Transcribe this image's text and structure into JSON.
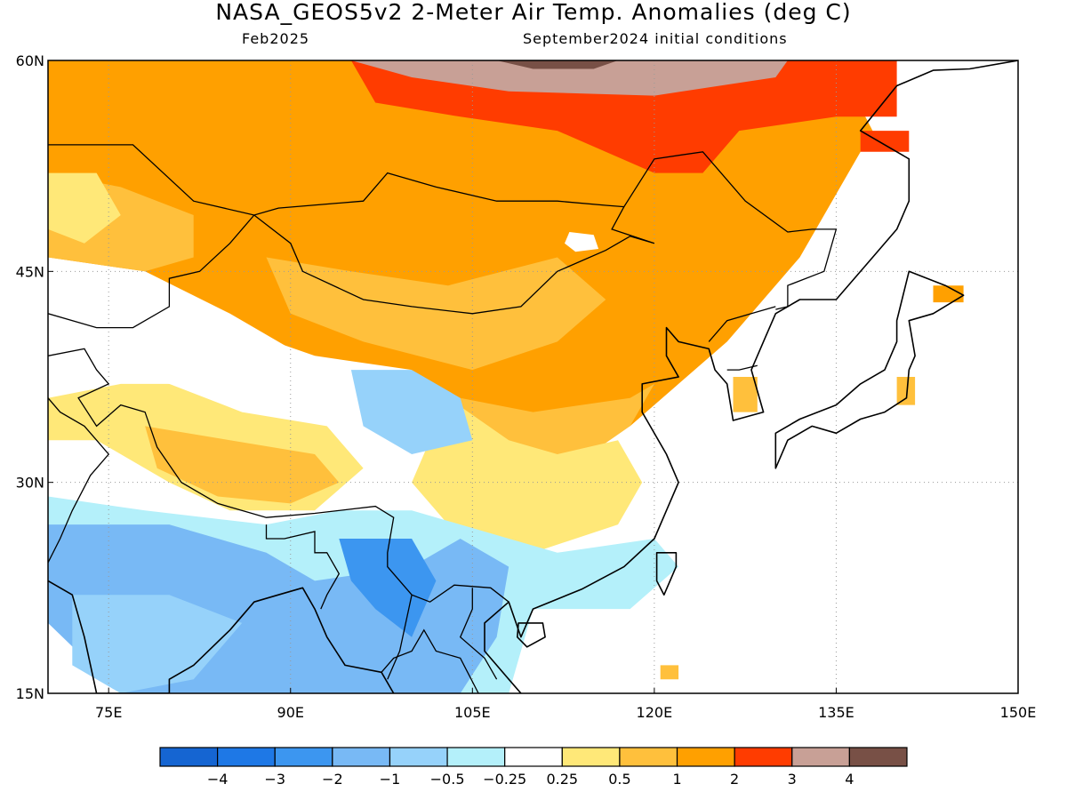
{
  "title": "NASA_GEOS5v2 2-Meter Air Temp. Anomalies (deg C)",
  "subtitle_left": "Feb2025",
  "subtitle_right": "September2024 initial conditions",
  "map_extent": {
    "lon": [
      70,
      150
    ],
    "lat": [
      15,
      60
    ]
  },
  "lon_ticks": [
    {
      "lon": 75,
      "label": "75E"
    },
    {
      "lon": 90,
      "label": "90E"
    },
    {
      "lon": 105,
      "label": "105E"
    },
    {
      "lon": 120,
      "label": "120E"
    },
    {
      "lon": 135,
      "label": "135E"
    },
    {
      "lon": 150,
      "label": "150E"
    }
  ],
  "lat_ticks": [
    {
      "lat": 15,
      "label": "15N"
    },
    {
      "lat": 30,
      "label": "30N"
    },
    {
      "lat": 45,
      "label": "45N"
    },
    {
      "lat": 60,
      "label": "60N"
    }
  ],
  "colorbar": {
    "colors": [
      "#1565d2",
      "#1e78e6",
      "#3c96f0",
      "#78b9f5",
      "#96d2fa",
      "#b4f0fa",
      "#ffffff",
      "#ffe878",
      "#ffc03c",
      "#ffa000",
      "#ff3c00",
      "#c8a096",
      "#785046"
    ],
    "labels": [
      "−4",
      "−3",
      "−2",
      "−1",
      "−0.5",
      "−0.25",
      "0.25",
      "0.5",
      "1",
      "2",
      "3",
      "4"
    ]
  },
  "anomaly_regions": [
    {
      "name": "northeast-warm",
      "level": 2,
      "color": "#ffa000",
      "lonlat": [
        [
          70,
          60
        ],
        [
          135,
          60
        ],
        [
          138,
          55
        ],
        [
          132,
          46
        ],
        [
          126,
          40
        ],
        [
          122,
          37
        ],
        [
          118,
          34
        ],
        [
          112,
          32
        ],
        [
          107,
          33
        ],
        [
          100,
          36
        ],
        [
          93,
          38
        ],
        [
          85,
          42
        ],
        [
          78,
          45
        ],
        [
          70,
          46
        ]
      ]
    },
    {
      "name": "west-siberia-mild",
      "level": 1,
      "color": "#ffc03c",
      "lonlat": [
        [
          70,
          52
        ],
        [
          76,
          51
        ],
        [
          82,
          49
        ],
        [
          82,
          46
        ],
        [
          78,
          45
        ],
        [
          70,
          46
        ]
      ]
    },
    {
      "name": "west-warm-edge",
      "level": 0.5,
      "color": "#ffe878",
      "lonlat": [
        [
          70,
          52
        ],
        [
          74,
          52
        ],
        [
          76,
          49
        ],
        [
          73,
          47
        ],
        [
          70,
          48
        ]
      ]
    },
    {
      "name": "mongolia-mild",
      "level": 1,
      "color": "#ffc03c",
      "lonlat": [
        [
          88,
          46
        ],
        [
          95,
          45
        ],
        [
          103,
          44
        ],
        [
          112,
          46
        ],
        [
          116,
          43
        ],
        [
          112,
          40
        ],
        [
          105,
          38
        ],
        [
          96,
          40
        ],
        [
          90,
          42
        ]
      ]
    },
    {
      "name": "mongolia-white",
      "level": 0.25,
      "color": "#ffffff",
      "lonlat": [
        [
          113,
          47.8
        ],
        [
          115,
          47.6
        ],
        [
          115.4,
          46.6
        ],
        [
          113.5,
          46.4
        ],
        [
          112.6,
          47
        ]
      ]
    },
    {
      "name": "central-china-warm",
      "level": 1,
      "color": "#ffc03c",
      "lonlat": [
        [
          104,
          36
        ],
        [
          110,
          35
        ],
        [
          118,
          36
        ],
        [
          124,
          39
        ],
        [
          120,
          37
        ],
        [
          118,
          34
        ],
        [
          113,
          31
        ],
        [
          112,
          28
        ],
        [
          108,
          28
        ],
        [
          104,
          32
        ]
      ]
    },
    {
      "name": "siberia-hot",
      "level": 3,
      "color": "#ff3c00",
      "lonlat": [
        [
          95,
          60
        ],
        [
          140,
          60
        ],
        [
          140,
          56
        ],
        [
          135,
          56
        ],
        [
          127,
          55
        ],
        [
          124,
          52
        ],
        [
          120,
          52
        ],
        [
          112,
          55
        ],
        [
          104,
          56
        ],
        [
          97,
          57
        ]
      ]
    },
    {
      "name": "siberia-very-hot",
      "level": 4,
      "color": "#c8a096",
      "lonlat": [
        [
          95,
          60
        ],
        [
          131,
          60
        ],
        [
          130,
          58.8
        ],
        [
          120,
          57.5
        ],
        [
          108,
          57.8
        ],
        [
          100,
          58.8
        ]
      ]
    },
    {
      "name": "siberia-extreme",
      "level": 5,
      "color": "#785046",
      "lonlat": [
        [
          107,
          60
        ],
        [
          117,
          60
        ],
        [
          115,
          59.4
        ],
        [
          110,
          59.4
        ]
      ]
    },
    {
      "name": "east-china-mild",
      "level": 0.5,
      "color": "#ffe878",
      "lonlat": [
        [
          103,
          36
        ],
        [
          108,
          33
        ],
        [
          112,
          32
        ],
        [
          117,
          33
        ],
        [
          119,
          30
        ],
        [
          117,
          27
        ],
        [
          110,
          25
        ],
        [
          104,
          26
        ],
        [
          100,
          30
        ]
      ]
    },
    {
      "name": "tibet-mild",
      "level": 0.5,
      "color": "#ffe878",
      "lonlat": [
        [
          70,
          36
        ],
        [
          76,
          37
        ],
        [
          80,
          37
        ],
        [
          86,
          35
        ],
        [
          93,
          34
        ],
        [
          96,
          31
        ],
        [
          92,
          28
        ],
        [
          85,
          28
        ],
        [
          80,
          30
        ],
        [
          74,
          33
        ],
        [
          70,
          33
        ]
      ]
    },
    {
      "name": "tibet-warm",
      "level": 1,
      "color": "#ffc03c",
      "lonlat": [
        [
          78,
          34
        ],
        [
          85,
          33
        ],
        [
          92,
          32
        ],
        [
          94,
          30
        ],
        [
          90,
          28.5
        ],
        [
          84,
          29
        ],
        [
          79,
          31
        ]
      ]
    },
    {
      "name": "tibet-north-neutral",
      "level": 0.25,
      "color": "#ffffff",
      "lonlat": [
        [
          74,
          42
        ],
        [
          82,
          42
        ],
        [
          92,
          39
        ],
        [
          100,
          38
        ],
        [
          96,
          35
        ],
        [
          88,
          36
        ],
        [
          80,
          37
        ],
        [
          74,
          38
        ]
      ]
    },
    {
      "name": "south-cool",
      "level": -0.25,
      "color": "#b4f0fa",
      "lonlat": [
        [
          70,
          29
        ],
        [
          78,
          28
        ],
        [
          88,
          27
        ],
        [
          94,
          28
        ],
        [
          100,
          28
        ],
        [
          104,
          27
        ],
        [
          112,
          25
        ],
        [
          120,
          26
        ],
        [
          122,
          24
        ],
        [
          118,
          21
        ],
        [
          110,
          21
        ],
        [
          108,
          15
        ],
        [
          80,
          15
        ],
        [
          70,
          20
        ]
      ]
    },
    {
      "name": "south-asia-cold",
      "level": -1,
      "color": "#78b9f5",
      "lonlat": [
        [
          70,
          27
        ],
        [
          80,
          27
        ],
        [
          88,
          25
        ],
        [
          92,
          23
        ],
        [
          100,
          24
        ],
        [
          104,
          26
        ],
        [
          108,
          24
        ],
        [
          107,
          19
        ],
        [
          104,
          15
        ],
        [
          85,
          15
        ],
        [
          76,
          15
        ],
        [
          70,
          20
        ]
      ]
    },
    {
      "name": "india-blue",
      "level": -1,
      "color": "#96d2fa",
      "lonlat": [
        [
          72,
          22
        ],
        [
          80,
          22
        ],
        [
          86,
          20
        ],
        [
          82,
          16
        ],
        [
          76,
          15
        ],
        [
          72,
          17
        ]
      ]
    },
    {
      "name": "indochina-cold",
      "level": -2,
      "color": "#3c96f0",
      "lonlat": [
        [
          94,
          26
        ],
        [
          100,
          26
        ],
        [
          102,
          23
        ],
        [
          100,
          19
        ],
        [
          97,
          21
        ],
        [
          95,
          23
        ]
      ]
    },
    {
      "name": "sichuan-cool",
      "level": -0.5,
      "color": "#96d2fa",
      "lonlat": [
        [
          95,
          38
        ],
        [
          100,
          38
        ],
        [
          104,
          36
        ],
        [
          105,
          33
        ],
        [
          100,
          32
        ],
        [
          96,
          34
        ]
      ]
    },
    {
      "name": "taiwan-warm",
      "level": 1,
      "color": "#ffc03c",
      "lonlat": [
        [
          120.5,
          17
        ],
        [
          122,
          17
        ],
        [
          122,
          16
        ],
        [
          120.5,
          16
        ]
      ]
    },
    {
      "name": "korea-warm",
      "level": 1,
      "color": "#ffc03c",
      "lonlat": [
        [
          126.5,
          37.5
        ],
        [
          128.5,
          37.5
        ],
        [
          128.5,
          35
        ],
        [
          126.5,
          35
        ]
      ]
    },
    {
      "name": "japan-warm",
      "level": 1,
      "color": "#ffc03c",
      "lonlat": [
        [
          140,
          37.5
        ],
        [
          141.5,
          37.5
        ],
        [
          141.5,
          35.5
        ],
        [
          140,
          35.5
        ]
      ]
    },
    {
      "name": "hokkaido-hot",
      "level": 2,
      "color": "#ffa000",
      "lonlat": [
        [
          143,
          44
        ],
        [
          145.5,
          44
        ],
        [
          145.5,
          42.8
        ],
        [
          143,
          42.8
        ]
      ]
    },
    {
      "name": "sakhalin-hot",
      "level": 3,
      "color": "#ff3c00",
      "lonlat": [
        [
          137,
          55
        ],
        [
          141,
          55
        ],
        [
          141,
          53.5
        ],
        [
          137,
          53.5
        ]
      ]
    }
  ],
  "coastline_lonlat": [
    [
      150,
      60
    ],
    [
      146,
      59.4
    ],
    [
      143,
      59.3
    ],
    [
      140,
      58.2
    ],
    [
      137,
      55
    ],
    [
      139,
      54
    ],
    [
      141,
      53
    ],
    [
      141,
      50
    ],
    [
      140,
      48
    ],
    [
      138,
      46
    ],
    [
      135,
      43
    ],
    [
      132,
      43
    ],
    [
      130,
      42
    ],
    [
      129,
      40
    ],
    [
      128,
      38
    ],
    [
      129,
      35
    ],
    [
      126.5,
      34.4
    ],
    [
      126,
      37
    ],
    [
      125,
      38
    ],
    [
      124.5,
      39.5
    ],
    [
      122,
      40
    ],
    [
      121,
      41
    ],
    [
      121,
      39
    ],
    [
      122,
      37.5
    ],
    [
      119,
      37
    ],
    [
      119,
      35
    ],
    [
      121,
      32
    ],
    [
      122,
      30
    ],
    [
      121,
      28
    ],
    [
      120,
      26
    ],
    [
      117.5,
      24
    ],
    [
      114,
      22.4
    ],
    [
      110,
      21
    ],
    [
      109,
      19
    ],
    [
      108,
      21.5
    ],
    [
      106,
      20
    ],
    [
      106,
      18
    ],
    [
      108,
      16
    ],
    [
      109,
      15
    ]
  ],
  "japan_lonlat": [
    [
      141,
      45
    ],
    [
      144,
      44
    ],
    [
      145.5,
      43.3
    ],
    [
      143,
      42
    ],
    [
      141,
      41.5
    ],
    [
      141.5,
      39
    ],
    [
      141,
      38
    ],
    [
      140.8,
      36
    ],
    [
      139,
      35
    ],
    [
      137,
      34.5
    ],
    [
      135,
      33.5
    ],
    [
      133,
      34
    ],
    [
      131,
      33
    ],
    [
      130,
      31
    ],
    [
      130,
      33.5
    ],
    [
      132,
      34.5
    ],
    [
      135,
      35.5
    ],
    [
      137,
      37
    ],
    [
      139,
      38
    ],
    [
      140,
      40
    ],
    [
      140,
      41.5
    ]
  ],
  "india_lonlat": [
    [
      70,
      23
    ],
    [
      72,
      22
    ],
    [
      73,
      19
    ],
    [
      74,
      15
    ],
    [
      80,
      15
    ],
    [
      80,
      16
    ],
    [
      82,
      17
    ],
    [
      85,
      19.5
    ],
    [
      87,
      21.5
    ],
    [
      89,
      22
    ],
    [
      91,
      22.5
    ],
    [
      92,
      21
    ],
    [
      93,
      19
    ],
    [
      94.5,
      17
    ],
    [
      97.5,
      16.5
    ],
    [
      98.5,
      15
    ]
  ],
  "taiwan_lonlat": [
    [
      120.2,
      25
    ],
    [
      121.8,
      25
    ],
    [
      121.8,
      24
    ],
    [
      120.8,
      22
    ],
    [
      120.2,
      23
    ]
  ],
  "hainan_lonlat": [
    [
      108.8,
      20
    ],
    [
      110.8,
      20
    ],
    [
      111,
      19
    ],
    [
      109.5,
      18.3
    ],
    [
      108.7,
      19
    ]
  ],
  "borders_lonlat": [
    [
      [
        70,
        54
      ],
      [
        77,
        54
      ],
      [
        82,
        50
      ],
      [
        87,
        49
      ],
      [
        89,
        49.5
      ],
      [
        96,
        50
      ],
      [
        98,
        52
      ],
      [
        102,
        51
      ],
      [
        107,
        50
      ],
      [
        112,
        50
      ],
      [
        116,
        49.7
      ],
      [
        117.5,
        49.6
      ],
      [
        120,
        53
      ],
      [
        124,
        53.5
      ],
      [
        127.5,
        50
      ],
      [
        131,
        47.8
      ],
      [
        133,
        48
      ],
      [
        135,
        48
      ],
      [
        134,
        45
      ],
      [
        131,
        44
      ],
      [
        131,
        42.5
      ],
      [
        130,
        42.3
      ]
    ],
    [
      [
        87,
        49
      ],
      [
        90,
        47
      ],
      [
        91,
        45
      ],
      [
        96,
        43
      ],
      [
        100,
        42.5
      ],
      [
        105,
        42
      ],
      [
        109,
        42.5
      ],
      [
        112,
        45
      ],
      [
        116,
        46.5
      ],
      [
        118,
        47.5
      ],
      [
        120,
        47
      ],
      [
        116.5,
        48
      ],
      [
        117.5,
        49.6
      ]
    ],
    [
      [
        70,
        42
      ],
      [
        74,
        41
      ],
      [
        77,
        41
      ],
      [
        80,
        42.5
      ],
      [
        80,
        44.5
      ],
      [
        82.5,
        45
      ],
      [
        85,
        47
      ],
      [
        87,
        49
      ]
    ],
    [
      [
        70,
        39
      ],
      [
        73,
        39.5
      ],
      [
        74,
        38
      ],
      [
        75,
        37
      ],
      [
        72.5,
        36
      ],
      [
        74,
        34
      ],
      [
        76,
        35.5
      ],
      [
        78,
        35
      ],
      [
        79,
        32.5
      ],
      [
        81,
        30
      ],
      [
        84,
        28.5
      ],
      [
        88,
        27.5
      ],
      [
        92,
        27.8
      ],
      [
        97,
        28.3
      ],
      [
        98.5,
        27.5
      ],
      [
        98,
        25
      ],
      [
        98,
        24
      ],
      [
        100,
        22
      ],
      [
        101.5,
        21.5
      ],
      [
        103.5,
        22.7
      ],
      [
        106.5,
        22.5
      ],
      [
        108,
        21.5
      ]
    ],
    [
      [
        70,
        36
      ],
      [
        71,
        35
      ],
      [
        73,
        34
      ],
      [
        74,
        33
      ],
      [
        75,
        32
      ],
      [
        73.5,
        30.5
      ],
      [
        72,
        28
      ],
      [
        71,
        26
      ],
      [
        70,
        24.3
      ]
    ],
    [
      [
        88,
        27
      ],
      [
        88,
        26
      ],
      [
        89.5,
        26
      ],
      [
        92,
        26.5
      ],
      [
        92,
        25
      ],
      [
        93,
        25
      ],
      [
        94,
        23.5
      ],
      [
        93,
        22
      ],
      [
        92.5,
        21
      ]
    ],
    [
      [
        97.5,
        16.5
      ],
      [
        98.5,
        17.5
      ],
      [
        100,
        18
      ],
      [
        101,
        19.5
      ],
      [
        102,
        18
      ],
      [
        104,
        17.5
      ],
      [
        105.5,
        15
      ]
    ],
    [
      [
        105,
        22.5
      ],
      [
        105,
        21
      ],
      [
        104,
        19
      ],
      [
        106,
        17.5
      ],
      [
        107,
        16
      ]
    ],
    [
      [
        100,
        22
      ],
      [
        99,
        18
      ],
      [
        98,
        16
      ]
    ],
    [
      [
        124.5,
        40
      ],
      [
        126,
        41.5
      ],
      [
        128,
        42
      ],
      [
        130,
        42.5
      ]
    ],
    [
      [
        126,
        38
      ],
      [
        127,
        38
      ],
      [
        128.5,
        38.3
      ]
    ]
  ]
}
